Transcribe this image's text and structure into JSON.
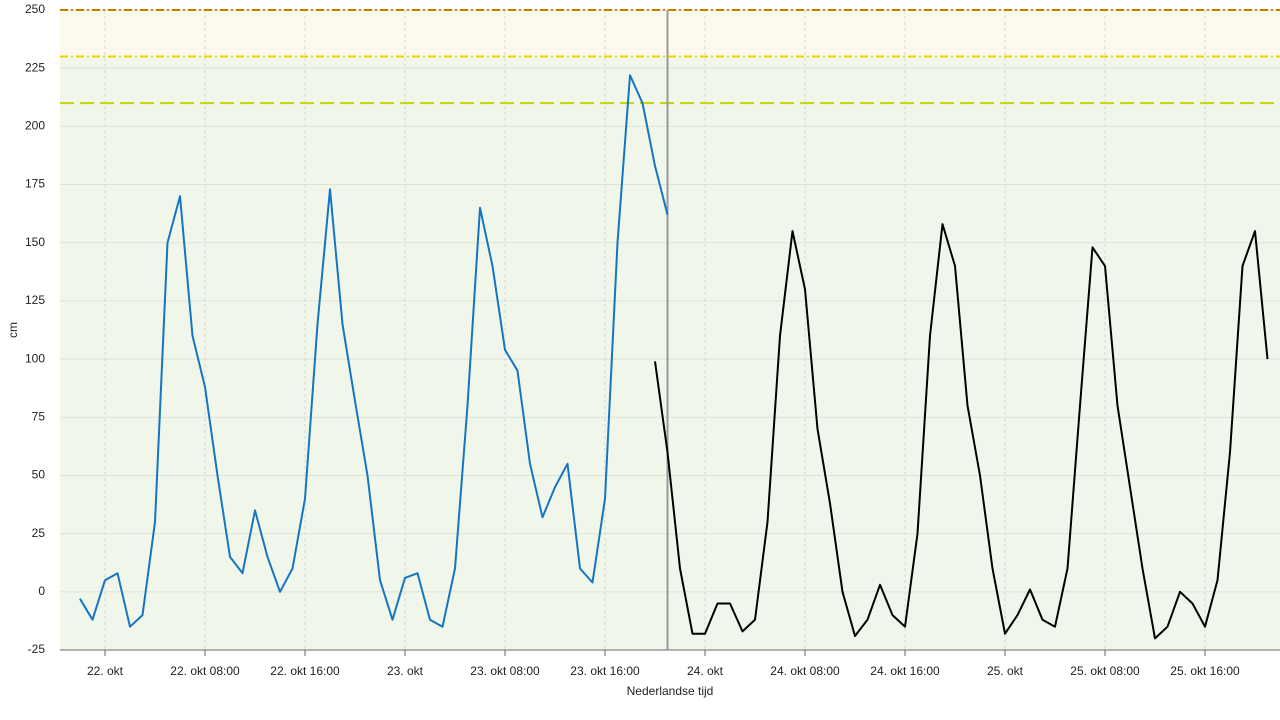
{
  "chart_data": {
    "type": "line",
    "y_label": "cm",
    "x_label": "Nederlandse tijd",
    "ylim": [
      -25,
      250
    ],
    "yticks": [
      -25,
      0,
      25,
      50,
      75,
      100,
      125,
      150,
      175,
      200,
      225,
      250
    ],
    "xlim": [
      "10-21T20:24",
      "10-25T22:00"
    ],
    "xticks": [
      {
        "value": "10-22T00:00",
        "label": "22. okt"
      },
      {
        "value": "10-22T08:00",
        "label": "22. okt 08:00"
      },
      {
        "value": "10-22T16:00",
        "label": "22. okt 16:00"
      },
      {
        "value": "10-23T00:00",
        "label": "23. okt"
      },
      {
        "value": "10-23T08:00",
        "label": "23. okt 08:00"
      },
      {
        "value": "10-23T16:00",
        "label": "23. okt 16:00"
      },
      {
        "value": "10-24T00:00",
        "label": "24. okt"
      },
      {
        "value": "10-24T08:00",
        "label": "24. okt 08:00"
      },
      {
        "value": "10-24T16:00",
        "label": "24. okt 16:00"
      },
      {
        "value": "10-25T00:00",
        "label": "25. okt"
      },
      {
        "value": "10-25T08:00",
        "label": "25. okt 08:00"
      },
      {
        "value": "10-25T16:00",
        "label": "25. okt 16:00"
      }
    ],
    "grid": true,
    "bands": [
      {
        "from": 230,
        "to": 250,
        "color": "#fdf9ec"
      },
      {
        "from": -25,
        "to": 230,
        "color": "#f1f6eb"
      }
    ],
    "thresholds": [
      {
        "value": 250,
        "color": "#c97a00",
        "dash": "8 3 2 3"
      },
      {
        "value": 230,
        "color": "#eed200",
        "dash": "8 3 2 3"
      },
      {
        "value": 210,
        "color": "#c6d400",
        "dash": "14 6"
      }
    ],
    "now": "10-23T21:00",
    "x": [
      "10-21T22:00",
      "10-21T23:00",
      "10-22T00:00",
      "10-22T01:00",
      "10-22T02:00",
      "10-22T03:00",
      "10-22T04:00",
      "10-22T05:00",
      "10-22T06:00",
      "10-22T07:00",
      "10-22T08:00",
      "10-22T09:00",
      "10-22T10:00",
      "10-22T11:00",
      "10-22T12:00",
      "10-22T13:00",
      "10-22T14:00",
      "10-22T15:00",
      "10-22T16:00",
      "10-22T17:00",
      "10-22T18:00",
      "10-22T19:00",
      "10-22T20:00",
      "10-22T21:00",
      "10-22T22:00",
      "10-22T23:00",
      "10-23T00:00",
      "10-23T01:00",
      "10-23T02:00",
      "10-23T03:00",
      "10-23T04:00",
      "10-23T05:00",
      "10-23T06:00",
      "10-23T07:00",
      "10-23T08:00",
      "10-23T09:00",
      "10-23T10:00",
      "10-23T11:00",
      "10-23T12:00",
      "10-23T13:00",
      "10-23T14:00",
      "10-23T15:00",
      "10-23T16:00",
      "10-23T17:00",
      "10-23T18:00",
      "10-23T19:00",
      "10-23T20:00",
      "10-23T21:00",
      "10-23T22:00",
      "10-23T23:00",
      "10-24T00:00",
      "10-24T01:00",
      "10-24T02:00",
      "10-24T03:00",
      "10-24T04:00",
      "10-24T05:00",
      "10-24T06:00",
      "10-24T07:00",
      "10-24T08:00",
      "10-24T09:00",
      "10-24T10:00",
      "10-24T11:00",
      "10-24T12:00",
      "10-24T13:00",
      "10-24T14:00",
      "10-24T15:00",
      "10-24T16:00",
      "10-24T17:00",
      "10-24T18:00",
      "10-24T19:00",
      "10-24T20:00",
      "10-24T21:00",
      "10-24T22:00",
      "10-24T23:00",
      "10-25T00:00",
      "10-25T01:00",
      "10-25T02:00",
      "10-25T03:00",
      "10-25T04:00",
      "10-25T05:00",
      "10-25T06:00",
      "10-25T07:00",
      "10-25T08:00",
      "10-25T09:00",
      "10-25T10:00",
      "10-25T11:00",
      "10-25T12:00",
      "10-25T13:00",
      "10-25T14:00",
      "10-25T15:00",
      "10-25T16:00",
      "10-25T17:00",
      "10-25T18:00",
      "10-25T19:00",
      "10-25T20:00",
      "10-25T21:00"
    ],
    "series": [
      {
        "color": "#1475c4",
        "values": [
          -3,
          -12,
          5,
          8,
          -15,
          -10,
          30,
          150,
          170,
          110,
          88,
          50,
          15,
          8,
          35,
          15,
          0,
          10,
          40,
          115,
          173,
          115,
          82,
          50,
          5,
          -12,
          6,
          8,
          -12,
          -15,
          10,
          80,
          165,
          140,
          104,
          95,
          55,
          32,
          45,
          55,
          10,
          4,
          40,
          150,
          222,
          210,
          183,
          162,
          null,
          null,
          null,
          null,
          null,
          null,
          null,
          null,
          null,
          null,
          null,
          null,
          null,
          null,
          null,
          null,
          null,
          null,
          null,
          null,
          null,
          null,
          null,
          null,
          null,
          null,
          null,
          null,
          null,
          null,
          null,
          null,
          null,
          null,
          null,
          null,
          null,
          null,
          null,
          null,
          null,
          null,
          null,
          null,
          null,
          null,
          null,
          null
        ]
      },
      {
        "color": "#000000",
        "values": [
          null,
          null,
          null,
          null,
          null,
          null,
          null,
          null,
          null,
          null,
          null,
          null,
          null,
          null,
          null,
          null,
          null,
          null,
          null,
          null,
          null,
          null,
          null,
          null,
          null,
          null,
          null,
          null,
          null,
          null,
          null,
          null,
          null,
          null,
          null,
          null,
          null,
          null,
          null,
          null,
          null,
          null,
          null,
          null,
          null,
          null,
          99,
          60,
          10,
          -18,
          -18,
          -5,
          -5,
          -17,
          -12,
          30,
          110,
          155,
          130,
          70,
          38,
          0,
          -19,
          -12,
          3,
          -10,
          -15,
          25,
          110,
          158,
          140,
          80,
          50,
          10,
          -18,
          -10,
          1,
          -12,
          -15,
          10,
          80,
          148,
          140,
          80,
          45,
          10,
          -20,
          -15,
          0,
          -5,
          -15,
          5,
          60,
          140,
          155,
          100
        ]
      }
    ]
  }
}
